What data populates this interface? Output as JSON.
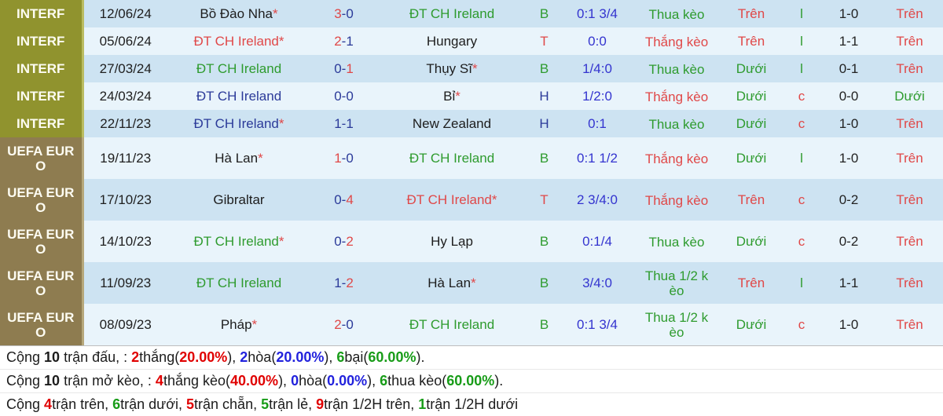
{
  "colors": {
    "interf_bg": "#90932e",
    "euro_bg": "#8e7c50",
    "row_dark": "#cde3f2",
    "row_light": "#e9f4fb",
    "team_green": "#2e9b2e",
    "team_navy": "#2b3a99",
    "accent_red": "#e04848",
    "handicap_blue": "#3434cf",
    "summary_red": "#e00000",
    "summary_blue": "#2222dd",
    "summary_green": "#189c18"
  },
  "rows": [
    {
      "comp": "INTERF",
      "theme": "interf",
      "tall": false,
      "date": "12/06/24",
      "home": {
        "t": "Bồ Đào Nha",
        "star": true,
        "c": "black"
      },
      "score": {
        "h": "3",
        "a": "0",
        "win": "h"
      },
      "away": {
        "t": "ĐT CH Ireland",
        "star": false,
        "c": "green"
      },
      "res": {
        "t": "B",
        "c": "green"
      },
      "hcp": "0:1 3/4",
      "keo": {
        "t": "Thua kèo",
        "c": "green"
      },
      "ou": {
        "t": "Trên",
        "c": "red"
      },
      "ic": {
        "t": "l",
        "c": "green"
      },
      "s2": "1-0",
      "ou2": {
        "t": "Trên",
        "c": "red"
      }
    },
    {
      "comp": "INTERF",
      "theme": "interf",
      "tall": false,
      "date": "05/06/24",
      "home": {
        "t": "ĐT CH Ireland",
        "star": true,
        "c": "red"
      },
      "score": {
        "h": "2",
        "a": "1",
        "win": "h"
      },
      "away": {
        "t": "Hungary",
        "star": false,
        "c": "black"
      },
      "res": {
        "t": "T",
        "c": "red"
      },
      "hcp": "0:0",
      "keo": {
        "t": "Thắng kèo",
        "c": "red"
      },
      "ou": {
        "t": "Trên",
        "c": "red"
      },
      "ic": {
        "t": "l",
        "c": "green"
      },
      "s2": "1-1",
      "ou2": {
        "t": "Trên",
        "c": "red"
      }
    },
    {
      "comp": "INTERF",
      "theme": "interf",
      "tall": false,
      "date": "27/03/24",
      "home": {
        "t": "ĐT CH Ireland",
        "star": false,
        "c": "green"
      },
      "score": {
        "h": "0",
        "a": "1",
        "win": "a"
      },
      "away": {
        "t": "Thụy Sĩ",
        "star": true,
        "c": "black"
      },
      "res": {
        "t": "B",
        "c": "green"
      },
      "hcp": "1/4:0",
      "keo": {
        "t": "Thua kèo",
        "c": "green"
      },
      "ou": {
        "t": "Dưới",
        "c": "green"
      },
      "ic": {
        "t": "l",
        "c": "green"
      },
      "s2": "0-1",
      "ou2": {
        "t": "Trên",
        "c": "red"
      }
    },
    {
      "comp": "INTERF",
      "theme": "interf",
      "tall": false,
      "date": "24/03/24",
      "home": {
        "t": "ĐT CH Ireland",
        "star": false,
        "c": "navy"
      },
      "score": {
        "h": "0",
        "a": "0",
        "win": "d"
      },
      "away": {
        "t": "Bỉ",
        "star": true,
        "c": "black"
      },
      "res": {
        "t": "H",
        "c": "navy"
      },
      "hcp": "1/2:0",
      "keo": {
        "t": "Thắng kèo",
        "c": "red"
      },
      "ou": {
        "t": "Dưới",
        "c": "green"
      },
      "ic": {
        "t": "c",
        "c": "red"
      },
      "s2": "0-0",
      "ou2": {
        "t": "Dưới",
        "c": "green"
      }
    },
    {
      "comp": "INTERF",
      "theme": "interf",
      "tall": false,
      "date": "22/11/23",
      "home": {
        "t": "ĐT CH Ireland",
        "star": true,
        "c": "navy"
      },
      "score": {
        "h": "1",
        "a": "1",
        "win": "d"
      },
      "away": {
        "t": "New Zealand",
        "star": false,
        "c": "black"
      },
      "res": {
        "t": "H",
        "c": "navy"
      },
      "hcp": "0:1",
      "keo": {
        "t": "Thua kèo",
        "c": "green"
      },
      "ou": {
        "t": "Dưới",
        "c": "green"
      },
      "ic": {
        "t": "c",
        "c": "red"
      },
      "s2": "1-0",
      "ou2": {
        "t": "Trên",
        "c": "red"
      }
    },
    {
      "comp": "UEFA EURO",
      "theme": "euro",
      "tall": true,
      "date": "19/11/23",
      "home": {
        "t": "Hà Lan",
        "star": true,
        "c": "black"
      },
      "score": {
        "h": "1",
        "a": "0",
        "win": "h"
      },
      "away": {
        "t": "ĐT CH Ireland",
        "star": false,
        "c": "green"
      },
      "res": {
        "t": "B",
        "c": "green"
      },
      "hcp": "0:1 1/2",
      "keo": {
        "t": "Thắng kèo",
        "c": "red"
      },
      "ou": {
        "t": "Dưới",
        "c": "green"
      },
      "ic": {
        "t": "l",
        "c": "green"
      },
      "s2": "1-0",
      "ou2": {
        "t": "Trên",
        "c": "red"
      }
    },
    {
      "comp": "UEFA EURO",
      "theme": "euro",
      "tall": true,
      "date": "17/10/23",
      "home": {
        "t": "Gibraltar",
        "star": false,
        "c": "black"
      },
      "score": {
        "h": "0",
        "a": "4",
        "win": "a"
      },
      "away": {
        "t": "ĐT CH Ireland",
        "star": true,
        "c": "red"
      },
      "res": {
        "t": "T",
        "c": "red"
      },
      "hcp": "2 3/4:0",
      "keo": {
        "t": "Thắng kèo",
        "c": "red"
      },
      "ou": {
        "t": "Trên",
        "c": "red"
      },
      "ic": {
        "t": "c",
        "c": "red"
      },
      "s2": "0-2",
      "ou2": {
        "t": "Trên",
        "c": "red"
      }
    },
    {
      "comp": "UEFA EURO",
      "theme": "euro",
      "tall": true,
      "date": "14/10/23",
      "home": {
        "t": "ĐT CH Ireland",
        "star": true,
        "c": "green"
      },
      "score": {
        "h": "0",
        "a": "2",
        "win": "a"
      },
      "away": {
        "t": "Hy Lạp",
        "star": false,
        "c": "black"
      },
      "res": {
        "t": "B",
        "c": "green"
      },
      "hcp": "0:1/4",
      "keo": {
        "t": "Thua kèo",
        "c": "green"
      },
      "ou": {
        "t": "Dưới",
        "c": "green"
      },
      "ic": {
        "t": "c",
        "c": "red"
      },
      "s2": "0-2",
      "ou2": {
        "t": "Trên",
        "c": "red"
      }
    },
    {
      "comp": "UEFA EURO",
      "theme": "euro",
      "tall": true,
      "date": "11/09/23",
      "home": {
        "t": "ĐT CH Ireland",
        "star": false,
        "c": "green"
      },
      "score": {
        "h": "1",
        "a": "2",
        "win": "a"
      },
      "away": {
        "t": "Hà Lan",
        "star": true,
        "c": "black"
      },
      "res": {
        "t": "B",
        "c": "green"
      },
      "hcp": "3/4:0",
      "keo": {
        "t": "Thua 1/2 kèo",
        "c": "green"
      },
      "ou": {
        "t": "Trên",
        "c": "red"
      },
      "ic": {
        "t": "l",
        "c": "green"
      },
      "s2": "1-1",
      "ou2": {
        "t": "Trên",
        "c": "red"
      }
    },
    {
      "comp": "UEFA EURO",
      "theme": "euro",
      "tall": true,
      "date": "08/09/23",
      "home": {
        "t": "Pháp",
        "star": true,
        "c": "black"
      },
      "score": {
        "h": "2",
        "a": "0",
        "win": "h"
      },
      "away": {
        "t": "ĐT CH Ireland",
        "star": false,
        "c": "green"
      },
      "res": {
        "t": "B",
        "c": "green"
      },
      "hcp": "0:1 3/4",
      "keo": {
        "t": "Thua 1/2 kèo",
        "c": "green"
      },
      "ou": {
        "t": "Dưới",
        "c": "green"
      },
      "ic": {
        "t": "c",
        "c": "red"
      },
      "s2": "1-0",
      "ou2": {
        "t": "Trên",
        "c": "red"
      }
    }
  ],
  "summary": [
    {
      "segments": [
        {
          "t": "Cộng ",
          "c": "k"
        },
        {
          "t": "10",
          "c": "k",
          "b": 1
        },
        {
          "t": " trận đấu, : ",
          "c": "k"
        },
        {
          "t": "2",
          "c": "r",
          "b": 1
        },
        {
          "t": "thắng(",
          "c": "k"
        },
        {
          "t": "20.00%",
          "c": "r",
          "b": 1
        },
        {
          "t": "), ",
          "c": "k"
        },
        {
          "t": "2",
          "c": "b",
          "b": 1
        },
        {
          "t": "hòa(",
          "c": "k"
        },
        {
          "t": "20.00%",
          "c": "b",
          "b": 1
        },
        {
          "t": "), ",
          "c": "k"
        },
        {
          "t": "6",
          "c": "g",
          "b": 1
        },
        {
          "t": "bại(",
          "c": "k"
        },
        {
          "t": "60.00%",
          "c": "g",
          "b": 1
        },
        {
          "t": ").",
          "c": "k"
        }
      ]
    },
    {
      "segments": [
        {
          "t": "Cộng ",
          "c": "k"
        },
        {
          "t": "10",
          "c": "k",
          "b": 1
        },
        {
          "t": " trận mở kèo, : ",
          "c": "k"
        },
        {
          "t": "4",
          "c": "r",
          "b": 1
        },
        {
          "t": "thắng kèo(",
          "c": "k"
        },
        {
          "t": "40.00%",
          "c": "r",
          "b": 1
        },
        {
          "t": "), ",
          "c": "k"
        },
        {
          "t": "0",
          "c": "b",
          "b": 1
        },
        {
          "t": "hòa(",
          "c": "k"
        },
        {
          "t": "0.00%",
          "c": "b",
          "b": 1
        },
        {
          "t": "), ",
          "c": "k"
        },
        {
          "t": "6",
          "c": "g",
          "b": 1
        },
        {
          "t": "thua kèo(",
          "c": "k"
        },
        {
          "t": "60.00%",
          "c": "g",
          "b": 1
        },
        {
          "t": ").",
          "c": "k"
        }
      ]
    },
    {
      "segments": [
        {
          "t": "Cộng ",
          "c": "k"
        },
        {
          "t": "4",
          "c": "r",
          "b": 1
        },
        {
          "t": "trận trên, ",
          "c": "k"
        },
        {
          "t": "6",
          "c": "g",
          "b": 1
        },
        {
          "t": "trận dưới, ",
          "c": "k"
        },
        {
          "t": "5",
          "c": "r",
          "b": 1
        },
        {
          "t": "trận chẵn, ",
          "c": "k"
        },
        {
          "t": "5",
          "c": "g",
          "b": 1
        },
        {
          "t": "trận lẻ, ",
          "c": "k"
        },
        {
          "t": "9",
          "c": "r",
          "b": 1
        },
        {
          "t": "trận 1/2H trên, ",
          "c": "k"
        },
        {
          "t": "1",
          "c": "g",
          "b": 1
        },
        {
          "t": "trận 1/2H dưới",
          "c": "k"
        }
      ]
    }
  ]
}
